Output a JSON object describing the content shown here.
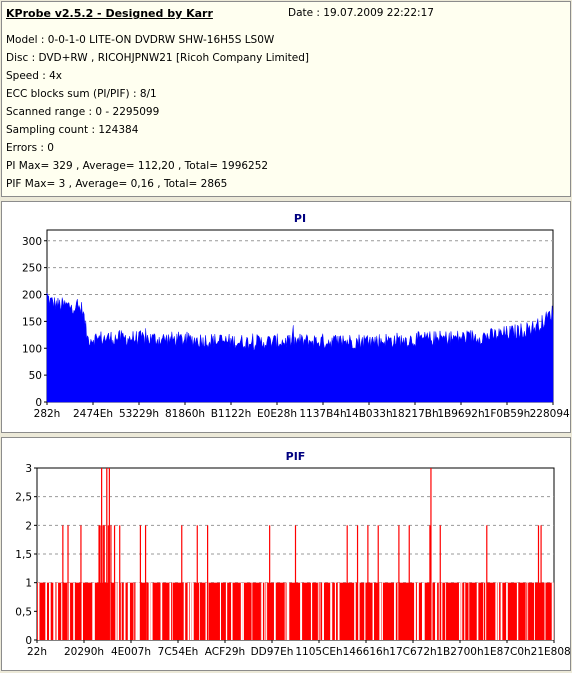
{
  "info": {
    "title": "KProbe v2.5.2 - Designed by Karr",
    "date": "Date : 19.07.2009 22:22:17",
    "lines": [
      "Model : 0-0-1-0 LITE-ON DVDRW SHW-16H5S  LS0W",
      "Disc : DVD+RW , RICOHJPNW21 [Ricoh Company Limited]",
      "Speed : 4x",
      "ECC blocks sum (PI/PIF) : 8/1",
      "Scanned range : 0 - 2295099",
      "Sampling count : 124384",
      "Errors : 0",
      "PI Max= 329 , Average= 112,20 , Total= 1996252",
      "PIF Max= 3 , Average= 0,16 , Total= 2865"
    ]
  },
  "chart_data": [
    {
      "type": "area",
      "title": "PI",
      "color": "#0000ff",
      "ylim": [
        0,
        320
      ],
      "yticks": [
        "0",
        "50",
        "100",
        "150",
        "200",
        "250",
        "300"
      ],
      "xticks": [
        "282h",
        "2474Eh",
        "53229h",
        "81860h",
        "B1122h",
        "E0E28h",
        "1137B4h",
        "14B033h",
        "18217Bh",
        "1B9692h",
        "1F0B59h",
        "228094h"
      ],
      "profile_x": [
        0,
        0.005,
        0.02,
        0.05,
        0.07,
        0.08,
        0.15,
        0.3,
        0.4,
        0.5,
        0.6,
        0.7,
        0.8,
        0.88,
        0.93,
        0.96,
        0.98,
        1.0
      ],
      "profile_y": [
        205,
        195,
        188,
        185,
        180,
        125,
        126,
        122,
        118,
        120,
        120,
        122,
        126,
        130,
        138,
        145,
        155,
        175
      ],
      "grid": true
    },
    {
      "type": "bar",
      "title": "PIF",
      "color": "#ff0000",
      "ylim": [
        0,
        3
      ],
      "yticks": [
        "0",
        "0,5",
        "1",
        "1,5",
        "2",
        "2,5",
        "3"
      ],
      "xticks": [
        "22h",
        "20290h",
        "4E007h",
        "7C54Eh",
        "ACF29h",
        "DD97Eh",
        "1105CEh",
        "146616h",
        "17C672h",
        "1B2700h",
        "1E87C0h",
        "21E808h"
      ],
      "spikes_level3": [
        0.125,
        0.135,
        0.14,
        0.762
      ],
      "spikes_level2": [
        0.05,
        0.06,
        0.085,
        0.12,
        0.122,
        0.128,
        0.13,
        0.138,
        0.143,
        0.15,
        0.16,
        0.2,
        0.21,
        0.28,
        0.31,
        0.33,
        0.45,
        0.5,
        0.6,
        0.62,
        0.64,
        0.66,
        0.7,
        0.72,
        0.76,
        0.78,
        0.87,
        0.97,
        0.975
      ],
      "grid": true
    }
  ]
}
